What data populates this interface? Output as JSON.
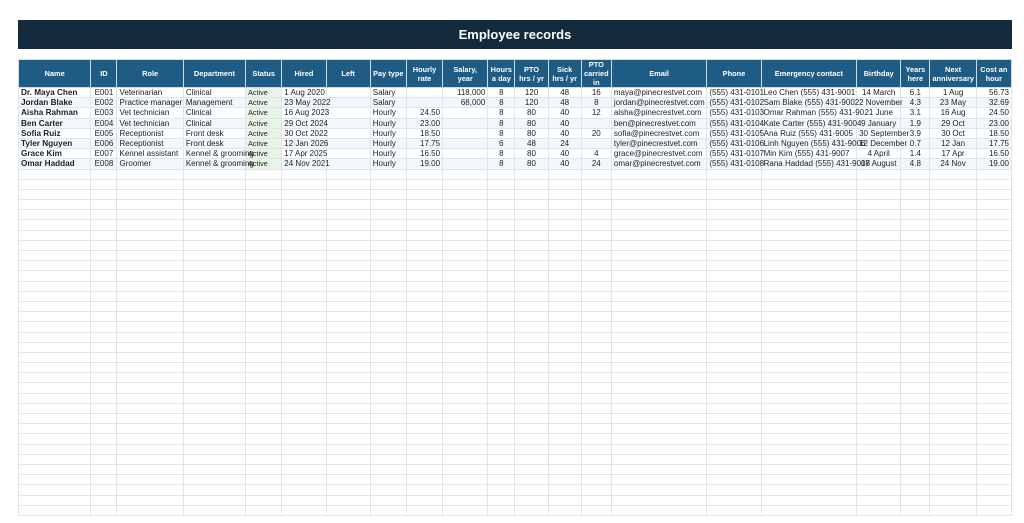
{
  "title": "Employee records",
  "columns": [
    "Name",
    "ID",
    "Role",
    "Department",
    "Status",
    "Hired",
    "Left",
    "Pay type",
    "Hourly rate",
    "Salary, year",
    "Hours a day",
    "PTO hrs / yr",
    "Sick hrs / yr",
    "PTO carried in",
    "Email",
    "Phone",
    "Emergency contact",
    "Birthday",
    "Years here",
    "Next anniversary",
    "Cost an hour"
  ],
  "rows": [
    {
      "name": "Dr. Maya Chen",
      "id": "E001",
      "role": "Veterinarian",
      "department": "Clinical",
      "status": "Active",
      "hired": "1 Aug 2020",
      "left": "",
      "pay_type": "Salary",
      "hourly_rate": "",
      "salary": "118,000",
      "hours_day": "8",
      "pto": "120",
      "sick": "48",
      "pto_carried": "16",
      "email": "maya@pinecrestvet.com",
      "phone": "(555) 431-0101",
      "emergency": "Leo Chen (555) 431-9001",
      "birthday": "14 March",
      "years": "6.1",
      "anniversary": "1 Aug",
      "cost": "56.73"
    },
    {
      "name": "Jordan Blake",
      "id": "E002",
      "role": "Practice manager",
      "department": "Management",
      "status": "Active",
      "hired": "23 May 2022",
      "left": "",
      "pay_type": "Salary",
      "hourly_rate": "",
      "salary": "68,000",
      "hours_day": "8",
      "pto": "120",
      "sick": "48",
      "pto_carried": "8",
      "email": "jordan@pinecrestvet.com",
      "phone": "(555) 431-0102",
      "emergency": "Sam Blake (555) 431-9002",
      "birthday": "2 November",
      "years": "4.3",
      "anniversary": "23 May",
      "cost": "32.69"
    },
    {
      "name": "Aisha Rahman",
      "id": "E003",
      "role": "Vet technician",
      "department": "Clinical",
      "status": "Active",
      "hired": "16 Aug 2023",
      "left": "",
      "pay_type": "Hourly",
      "hourly_rate": "24.50",
      "salary": "",
      "hours_day": "8",
      "pto": "80",
      "sick": "40",
      "pto_carried": "12",
      "email": "aisha@pinecrestvet.com",
      "phone": "(555) 431-0103",
      "emergency": "Omar Rahman (555) 431-90",
      "birthday": "21 June",
      "years": "3.1",
      "anniversary": "16 Aug",
      "cost": "24.50"
    },
    {
      "name": "Ben Carter",
      "id": "E004",
      "role": "Vet technician",
      "department": "Clinical",
      "status": "Active",
      "hired": "29 Oct 2024",
      "left": "",
      "pay_type": "Hourly",
      "hourly_rate": "23.00",
      "salary": "",
      "hours_day": "8",
      "pto": "80",
      "sick": "40",
      "pto_carried": "",
      "email": "ben@pinecrestvet.com",
      "phone": "(555) 431-0104",
      "emergency": "Kate Carter (555) 431-9004",
      "birthday": "9 January",
      "years": "1.9",
      "anniversary": "29 Oct",
      "cost": "23.00"
    },
    {
      "name": "Sofia Ruiz",
      "id": "E005",
      "role": "Receptionist",
      "department": "Front desk",
      "status": "Active",
      "hired": "30 Oct 2022",
      "left": "",
      "pay_type": "Hourly",
      "hourly_rate": "18.50",
      "salary": "",
      "hours_day": "8",
      "pto": "80",
      "sick": "40",
      "pto_carried": "20",
      "email": "sofia@pinecrestvet.com",
      "phone": "(555) 431-0105",
      "emergency": "Ana Ruiz (555) 431-9005",
      "birthday": "30 September",
      "years": "3.9",
      "anniversary": "30 Oct",
      "cost": "18.50"
    },
    {
      "name": "Tyler Nguyen",
      "id": "E006",
      "role": "Receptionist",
      "department": "Front desk",
      "status": "Active",
      "hired": "12 Jan 2026",
      "left": "",
      "pay_type": "Hourly",
      "hourly_rate": "17.75",
      "salary": "",
      "hours_day": "6",
      "pto": "48",
      "sick": "24",
      "pto_carried": "",
      "email": "tyler@pinecrestvet.com",
      "phone": "(555) 431-0106",
      "emergency": "Linh Nguyen (555) 431-9006",
      "birthday": "12 December",
      "years": "0.7",
      "anniversary": "12 Jan",
      "cost": "17.75"
    },
    {
      "name": "Grace Kim",
      "id": "E007",
      "role": "Kennel assistant",
      "department": "Kennel & grooming",
      "status": "Active",
      "hired": "17 Apr 2025",
      "left": "",
      "pay_type": "Hourly",
      "hourly_rate": "16.50",
      "salary": "",
      "hours_day": "8",
      "pto": "80",
      "sick": "40",
      "pto_carried": "4",
      "email": "grace@pinecrestvet.com",
      "phone": "(555) 431-0107",
      "emergency": "Min Kim (555) 431-9007",
      "birthday": "4 April",
      "years": "1.4",
      "anniversary": "17 Apr",
      "cost": "16.50"
    },
    {
      "name": "Omar Haddad",
      "id": "E008",
      "role": "Groomer",
      "department": "Kennel & grooming",
      "status": "Active",
      "hired": "24 Nov 2021",
      "left": "",
      "pay_type": "Hourly",
      "hourly_rate": "19.00",
      "salary": "",
      "hours_day": "8",
      "pto": "80",
      "sick": "40",
      "pto_carried": "24",
      "email": "omar@pinecrestvet.com",
      "phone": "(555) 431-0108",
      "emergency": "Rana Haddad (555) 431-9008",
      "birthday": "17 August",
      "years": "4.8",
      "anniversary": "24 Nov",
      "cost": "19.00"
    }
  ],
  "colors": {
    "banner": "#132a3d",
    "header": "#1f5c85",
    "status_bg": "#e7f4e6",
    "status_text": "#2e7d32"
  }
}
